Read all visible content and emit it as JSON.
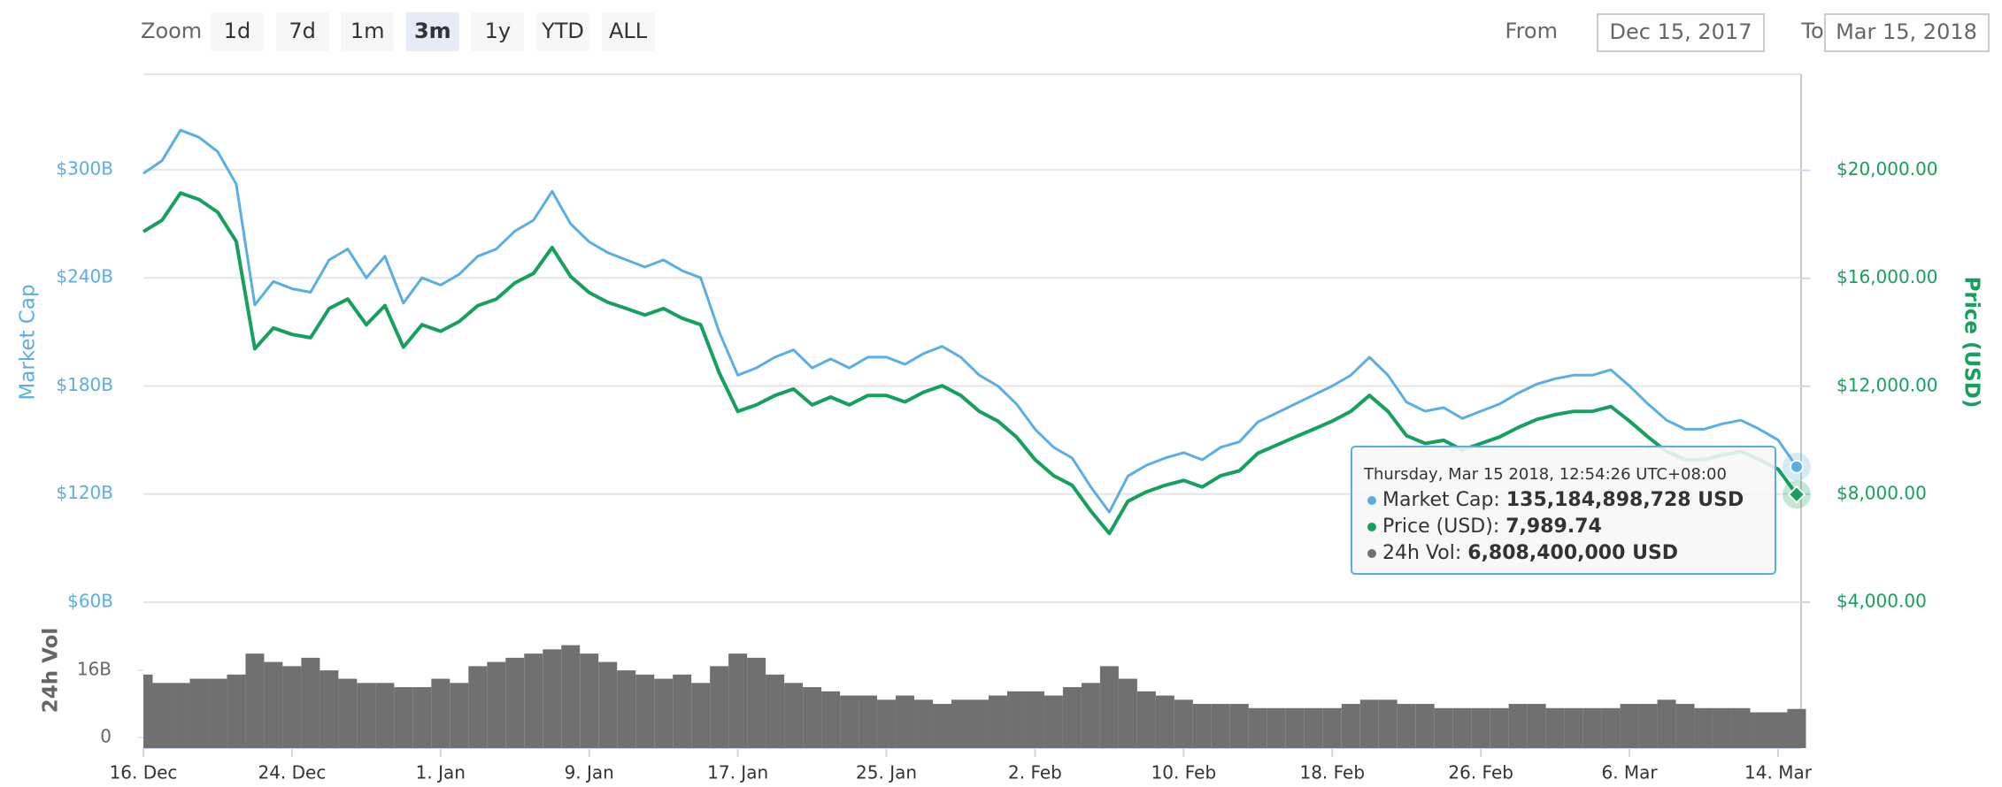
{
  "toolbar": {
    "zoom_label": "Zoom",
    "buttons": [
      "1d",
      "7d",
      "1m",
      "3m",
      "1y",
      "YTD",
      "ALL"
    ],
    "selected": "3m",
    "from_label": "From",
    "from_value": "Dec 15, 2017",
    "to_label": "To",
    "to_value": "Mar 15, 2018"
  },
  "tooltip": {
    "header": "Thursday, Mar 15 2018, 12:54:26 UTC+08:00",
    "rows": [
      {
        "label": "Market Cap:",
        "value": "135,184,898,728 USD",
        "color": "#5aaee4"
      },
      {
        "label": "Price (USD):",
        "value": "7,989.74",
        "color": "#16a05d"
      },
      {
        "label": "24h Vol:",
        "value": "6,808,400,000 USD",
        "color": "#707070"
      }
    ]
  },
  "chart_data": [
    {
      "type": "line",
      "y_label": "Market Cap",
      "y2_label": "Price (USD)",
      "ylim": [
        60,
        353
      ],
      "yticks": [
        {
          "value": 60,
          "label": "$60B"
        },
        {
          "value": 120,
          "label": "$120B"
        },
        {
          "value": 180,
          "label": "$180B"
        },
        {
          "value": 240,
          "label": "$240B"
        },
        {
          "value": 300,
          "label": "$300B"
        }
      ],
      "y2lim": [
        4000,
        23560
      ],
      "y2ticks": [
        {
          "value": 4000,
          "label": "$4,000.00"
        },
        {
          "value": 8000,
          "label": "$8,000.00"
        },
        {
          "value": 12000,
          "label": "$12,000.00"
        },
        {
          "value": 16000,
          "label": "$16,000.00"
        },
        {
          "value": 20000,
          "label": "$20,000.00"
        }
      ],
      "grid": true,
      "series": [
        {
          "name": "Market Cap",
          "color": "#5aaee4",
          "values": [
            298,
            305,
            322,
            318,
            310,
            292,
            225,
            238,
            234,
            232,
            250,
            256,
            240,
            252,
            226,
            240,
            236,
            242,
            252,
            256,
            266,
            272,
            288,
            270,
            260,
            254,
            250,
            246,
            250,
            244,
            240,
            210,
            186,
            190,
            196,
            200,
            190,
            195,
            190,
            196,
            196,
            192,
            198,
            202,
            196,
            186,
            180,
            170,
            156,
            146,
            140,
            124,
            110,
            130,
            136,
            140,
            143,
            139,
            146,
            149,
            160,
            165,
            170,
            175,
            180,
            186,
            196,
            186,
            171,
            166,
            168,
            162,
            166,
            170,
            176,
            181,
            184,
            186,
            186,
            189,
            180,
            170,
            161,
            156,
            156,
            159,
            161,
            156,
            150,
            135.18
          ]
        },
        {
          "name": "Price (USD)",
          "color": "#16a05d",
          "axis": "y2",
          "values": [
            17730,
            18150,
            19160,
            18920,
            18450,
            17370,
            13390,
            14160,
            13920,
            13800,
            14880,
            15230,
            14280,
            14990,
            13450,
            14280,
            14040,
            14400,
            14990,
            15230,
            15830,
            16180,
            17140,
            16070,
            15470,
            15110,
            14880,
            14640,
            14880,
            14520,
            14280,
            12500,
            11070,
            11310,
            11660,
            11900,
            11310,
            11600,
            11310,
            11660,
            11660,
            11420,
            11780,
            12020,
            11660,
            11070,
            10710,
            10120,
            9280,
            8690,
            8330,
            7380,
            6550,
            7740,
            8090,
            8330,
            8510,
            8270,
            8690,
            8870,
            9520,
            9820,
            10120,
            10410,
            10710,
            11070,
            11660,
            11070,
            10170,
            9880,
            10000,
            9640,
            9880,
            10120,
            10470,
            10770,
            10950,
            11070,
            11070,
            11250,
            10710,
            10120,
            9580,
            9280,
            9280,
            9460,
            9580,
            9280,
            8930,
            7989.74
          ]
        }
      ]
    },
    {
      "type": "bar",
      "y_label": "24h Vol",
      "color": "#707070",
      "ylim": [
        0,
        29.3
      ],
      "yticks": [
        0,
        {
          "value": 16,
          "label": "16B"
        }
      ],
      "categories": [
        "16. Dec",
        null,
        null,
        null,
        null,
        null,
        null,
        null,
        "24. Dec",
        null,
        null,
        null,
        null,
        null,
        null,
        null,
        "1. Jan",
        null,
        null,
        null,
        null,
        null,
        null,
        null,
        "9. Jan",
        null,
        null,
        null,
        null,
        null,
        null,
        null,
        "17. Jan",
        null,
        null,
        null,
        null,
        null,
        null,
        null,
        "25. Jan",
        null,
        null,
        null,
        null,
        null,
        null,
        null,
        "2. Feb",
        null,
        null,
        null,
        null,
        null,
        null,
        null,
        "10. Feb",
        null,
        null,
        null,
        null,
        null,
        null,
        null,
        "18. Feb",
        null,
        null,
        null,
        null,
        null,
        null,
        null,
        "26. Feb",
        null,
        null,
        null,
        null,
        null,
        null,
        null,
        "6. Mar",
        null,
        null,
        null,
        null,
        null,
        null,
        null,
        "14. Mar",
        null
      ],
      "values": [
        15,
        13,
        13,
        14,
        14,
        15,
        20,
        18,
        17,
        19,
        16,
        14,
        13,
        13,
        12,
        12,
        14,
        13,
        17,
        18,
        19,
        20,
        21,
        22,
        20,
        18,
        16,
        15,
        14,
        15,
        13,
        17,
        20,
        19,
        15,
        13,
        12,
        11,
        10,
        10,
        9,
        10,
        9,
        8,
        9,
        9,
        10,
        11,
        11,
        10,
        12,
        13,
        17,
        14,
        11,
        10,
        9,
        8,
        8,
        8,
        7,
        7,
        7,
        7,
        7,
        8,
        9,
        9,
        8,
        8,
        7,
        7,
        7,
        7,
        8,
        8,
        7,
        7,
        7,
        7,
        8,
        8,
        9,
        8,
        7,
        7,
        7,
        6,
        6,
        6.8
      ]
    }
  ]
}
